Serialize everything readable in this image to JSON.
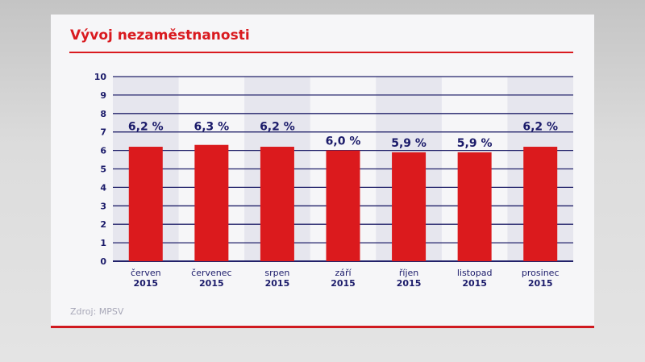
{
  "chart_data": {
    "type": "bar",
    "title": "Vývoj nezaměstnanosti",
    "categories": [
      [
        "červen",
        "2015"
      ],
      [
        "červenec",
        "2015"
      ],
      [
        "srpen",
        "2015"
      ],
      [
        "září",
        "2015"
      ],
      [
        "říjen",
        "2015"
      ],
      [
        "listopad",
        "2015"
      ],
      [
        "prosinec",
        "2015"
      ]
    ],
    "values": [
      6.2,
      6.3,
      6.2,
      6.0,
      5.9,
      5.9,
      6.2
    ],
    "data_labels": [
      "6,2 %",
      "6,3 %",
      "6,2 %",
      "6,0 %",
      "5,9 %",
      "5,9 %",
      "6,2 %"
    ],
    "yticks": [
      "0",
      "1",
      "2",
      "3",
      "4",
      "5",
      "6",
      "7",
      "8",
      "9",
      "10"
    ],
    "ylim": [
      0,
      10
    ],
    "grid": true,
    "xlabel": "",
    "ylabel": "",
    "colors": {
      "bar": "#db1a1d",
      "grid": "#22226a",
      "text": "#1b1b6a",
      "title": "#d91a1f",
      "band": "#e6e6ee"
    }
  },
  "source": "Zdroj: MPSV"
}
